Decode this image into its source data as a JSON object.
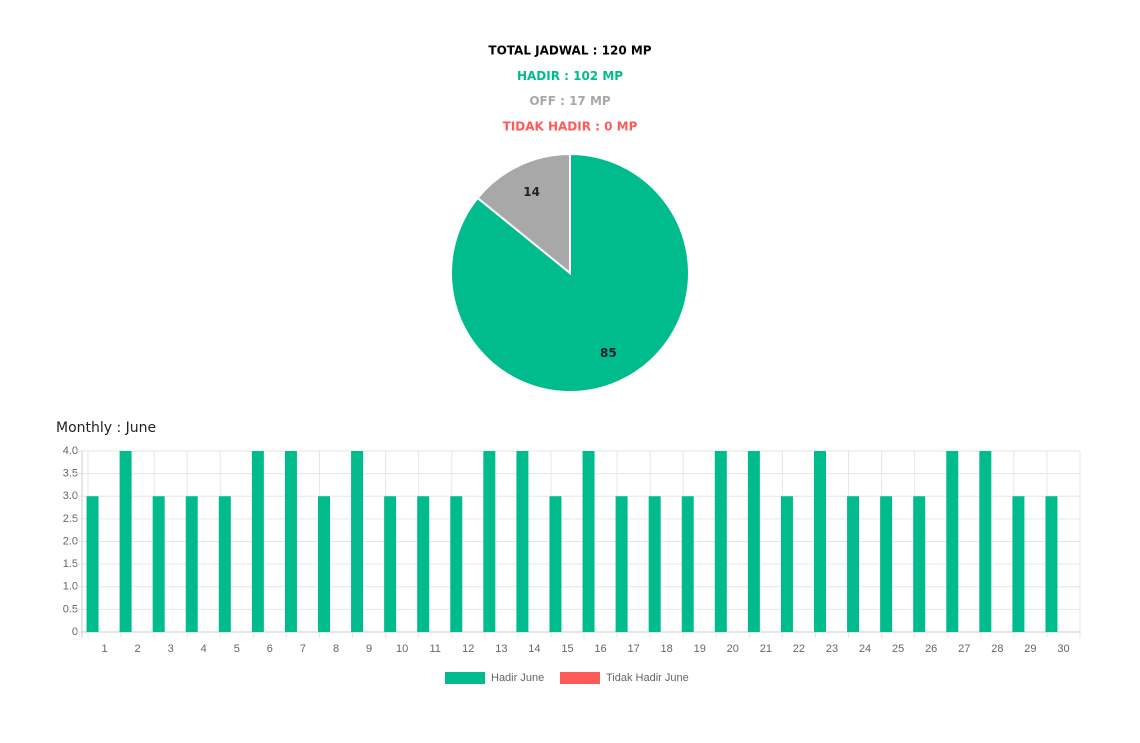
{
  "summary": [
    {
      "text": "TOTAL JADWAL : 120 MP",
      "color": "#000000"
    },
    {
      "text": "HADIR : 102 MP",
      "color": "#00bc8c"
    },
    {
      "text": "OFF : 17 MP",
      "color": "#a8a8a8"
    },
    {
      "text": "TIDAK HADIR : 0 MP",
      "color": "#ff5a5a"
    }
  ],
  "chart_data": [
    {
      "type": "pie",
      "values": [
        85,
        14
      ],
      "colors": [
        "#00bc8c",
        "#a8a8a8"
      ]
    },
    {
      "type": "bar",
      "title": "Monthly : June",
      "categories": [
        "1",
        "2",
        "3",
        "4",
        "5",
        "6",
        "7",
        "8",
        "9",
        "10",
        "11",
        "12",
        "13",
        "14",
        "15",
        "16",
        "17",
        "18",
        "19",
        "20",
        "21",
        "22",
        "23",
        "24",
        "25",
        "26",
        "27",
        "28",
        "29",
        "30"
      ],
      "series": [
        {
          "name": "Hadir June",
          "color": "#00bc8c",
          "values": [
            3,
            4,
            3,
            3,
            3,
            4,
            4,
            3,
            4,
            3,
            3,
            3,
            4,
            4,
            3,
            4,
            3,
            3,
            3,
            4,
            4,
            3,
            4,
            3,
            3,
            3,
            4,
            4,
            3,
            3
          ]
        },
        {
          "name": "Tidak Hadir June",
          "color": "#ff5a5a",
          "values": [
            0,
            0,
            0,
            0,
            0,
            0,
            0,
            0,
            0,
            0,
            0,
            0,
            0,
            0,
            0,
            0,
            0,
            0,
            0,
            0,
            0,
            0,
            0,
            0,
            0,
            0,
            0,
            0,
            0,
            0
          ]
        }
      ],
      "ylim": [
        0,
        4
      ],
      "yticks": [
        0,
        0.5,
        {
          "value": 1,
          "label": "1.0"
        },
        1.5,
        {
          "value": 2,
          "label": "2.0"
        },
        2.5,
        {
          "value": 3,
          "label": "3.0"
        },
        3.5,
        {
          "value": 4,
          "label": "4.0"
        }
      ],
      "grid": true
    }
  ]
}
